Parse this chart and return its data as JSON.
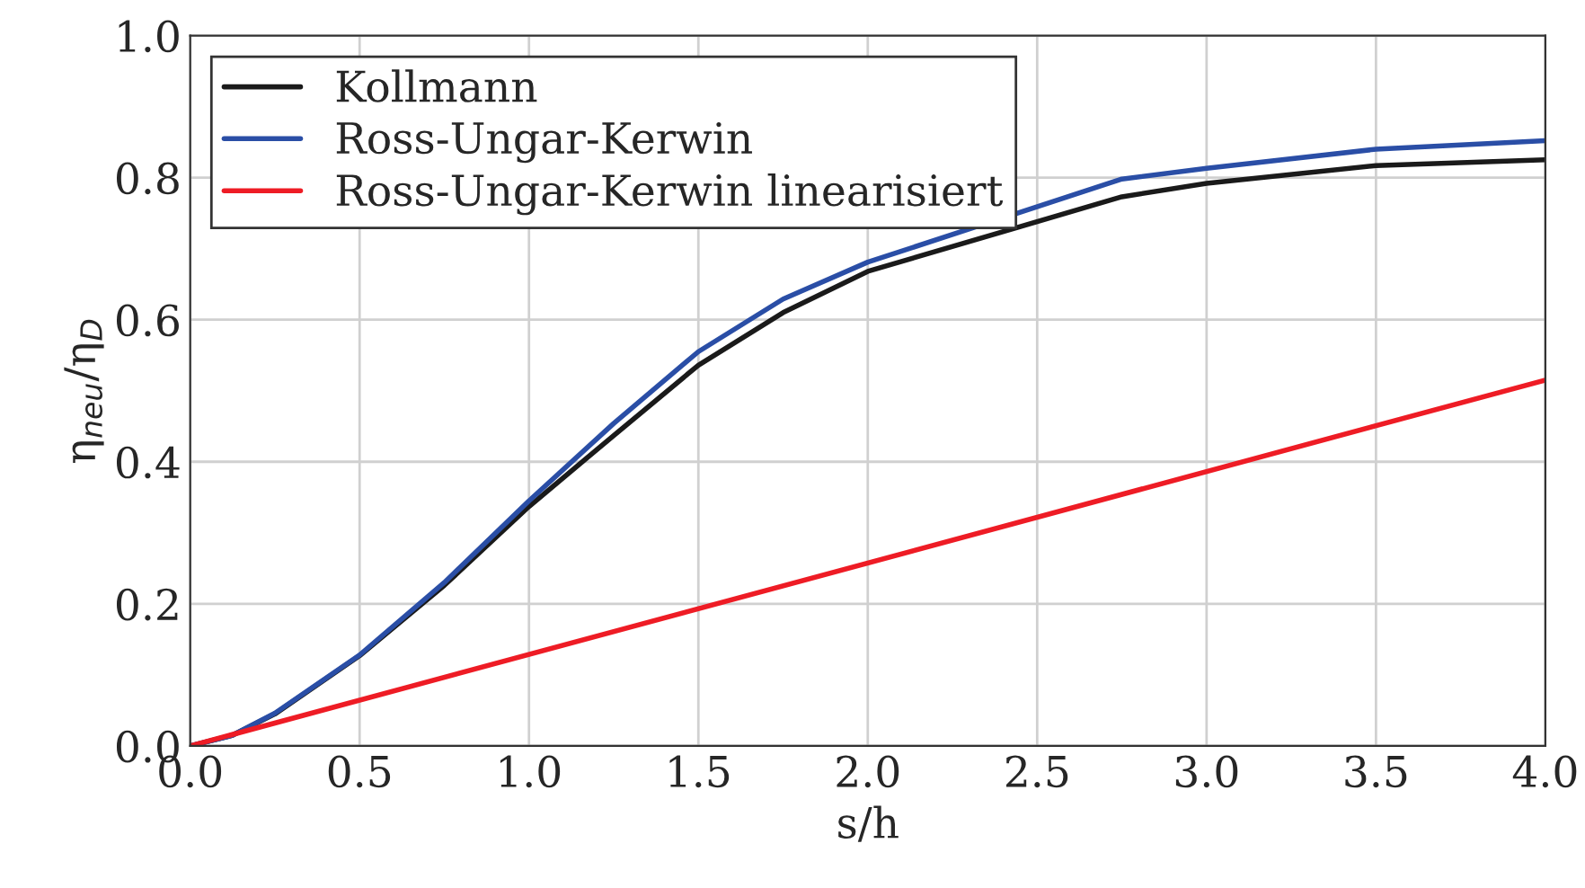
{
  "chart_data": {
    "type": "line",
    "xlabel": "s/h",
    "ylabel": "η$_{neu}$/η$_{D}$",
    "xlim": [
      0,
      4
    ],
    "ylim": [
      0,
      1
    ],
    "xticks": [
      {
        "value": 0,
        "label": "0.0"
      },
      0.5,
      {
        "value": 1,
        "label": "1.0"
      },
      1.5,
      {
        "value": 2,
        "label": "2.0"
      },
      2.5,
      {
        "value": 3,
        "label": "3.0"
      },
      3.5,
      {
        "value": 4,
        "label": "4.0"
      }
    ],
    "yticks": [
      {
        "value": 0,
        "label": "0.0"
      },
      0.2,
      0.4,
      0.6,
      0.8,
      {
        "value": 1,
        "label": "1.0"
      }
    ],
    "grid": true,
    "legend": "top left",
    "marker": "none",
    "line_style": "solid",
    "series": [
      {
        "name": "Kollmann",
        "color": "#1a1a1a",
        "x": [
          0,
          0.125,
          0.25,
          0.5,
          0.75,
          1.0,
          1.25,
          1.5,
          1.75,
          2.0,
          2.75,
          3.0,
          3.5,
          4.0
        ],
        "values": [
          0,
          0.015,
          0.045,
          0.127,
          0.226,
          0.337,
          0.437,
          0.536,
          0.61,
          0.668,
          0.773,
          0.792,
          0.817,
          0.825
        ]
      },
      {
        "name": "Ross-Ungar-Kerwin",
        "color": "#2a4ea6",
        "x": [
          0,
          0.125,
          0.25,
          0.5,
          0.75,
          1.0,
          1.25,
          1.5,
          1.75,
          2.0,
          2.75,
          3.0,
          3.5,
          4.0
        ],
        "values": [
          0,
          0.015,
          0.046,
          0.128,
          0.23,
          0.345,
          0.454,
          0.555,
          0.629,
          0.681,
          0.798,
          0.813,
          0.84,
          0.852
        ]
      },
      {
        "name": "Ross-Ungar-Kerwin linearisiert",
        "color": "#ee1c25",
        "x": [
          0,
          4.0
        ],
        "values": [
          0,
          0.515
        ]
      }
    ]
  }
}
